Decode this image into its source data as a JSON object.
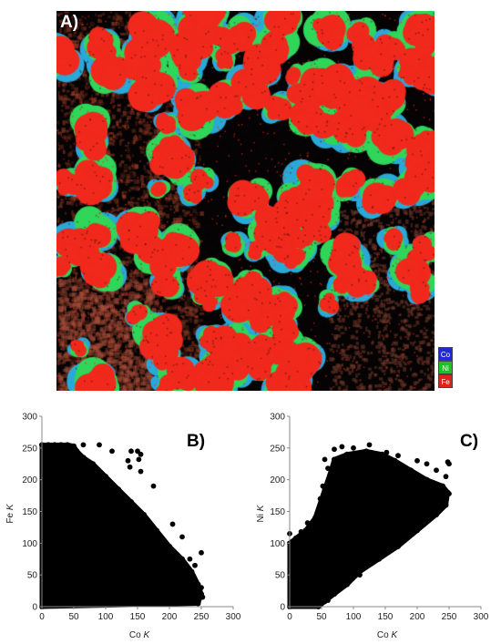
{
  "map": {
    "label": "A)",
    "legend": [
      {
        "label": "Co",
        "color": "#1f2ad6"
      },
      {
        "label": "Ni",
        "color": "#1ec21e"
      },
      {
        "label": "Fe",
        "color": "#d9261c"
      }
    ],
    "colors": {
      "background": "#050303",
      "fe": "#f0291c",
      "ni": "#2fd65a",
      "co": "#2aa8d8",
      "matrix": "#6e2a1e"
    }
  },
  "chart_data": [
    {
      "type": "scatter",
      "panel_label": "B)",
      "xlabel": "Co",
      "xlabel_italic": "K",
      "ylabel": "Fe",
      "ylabel_italic": "K",
      "xlim": [
        0,
        300
      ],
      "ylim": [
        0,
        300
      ],
      "xticks": [
        "0",
        "50",
        "100",
        "150",
        "200",
        "250",
        "300"
      ],
      "yticks": [
        "0",
        "50",
        "100",
        "150",
        "200",
        "250",
        "300"
      ],
      "marker_color": "#000000",
      "series": [
        {
          "values": [
            [
              0,
              255
            ],
            [
              10,
              255
            ],
            [
              20,
              255
            ],
            [
              30,
              255
            ],
            [
              40,
              255
            ],
            [
              50,
              253
            ],
            [
              55,
              245
            ],
            [
              65,
              235
            ],
            [
              80,
              225
            ],
            [
              100,
              205
            ],
            [
              120,
              185
            ],
            [
              140,
              165
            ],
            [
              160,
              145
            ],
            [
              180,
              120
            ],
            [
              200,
              95
            ],
            [
              220,
              75
            ],
            [
              235,
              55
            ],
            [
              245,
              35
            ],
            [
              250,
              20
            ],
            [
              245,
              5
            ],
            [
              0,
              0
            ]
          ]
        },
        {
          "values": [
            [
              65,
              255
            ],
            [
              90,
              255
            ],
            [
              110,
              245
            ],
            [
              135,
              230
            ],
            [
              140,
              245
            ],
            [
              150,
              245
            ],
            [
              155,
              240
            ],
            [
              152,
              232
            ],
            [
              138,
              220
            ],
            [
              155,
              213
            ],
            [
              175,
              190
            ],
            [
              205,
              130
            ],
            [
              220,
              110
            ],
            [
              232,
              75
            ],
            [
              250,
              85
            ],
            [
              240,
              65
            ],
            [
              250,
              30
            ],
            [
              252,
              15
            ]
          ]
        }
      ]
    },
    {
      "type": "scatter",
      "panel_label": "C)",
      "xlabel": "Co",
      "xlabel_italic": "K",
      "ylabel": "Ni",
      "ylabel_italic": "K",
      "xlim": [
        0,
        300
      ],
      "ylim": [
        0,
        300
      ],
      "xticks": [
        "0",
        "50",
        "100",
        "150",
        "200",
        "250",
        "300"
      ],
      "yticks": [
        "0",
        "50",
        "100",
        "150",
        "200",
        "250",
        "300"
      ],
      "marker_color": "#000000",
      "series": [
        {
          "values": [
            [
              0,
              0
            ],
            [
              0,
              100
            ],
            [
              10,
              108
            ],
            [
              25,
              120
            ],
            [
              40,
              140
            ],
            [
              55,
              185
            ],
            [
              65,
              215
            ],
            [
              70,
              232
            ],
            [
              90,
              240
            ],
            [
              120,
              245
            ],
            [
              145,
              240
            ],
            [
              165,
              230
            ],
            [
              190,
              215
            ],
            [
              215,
              200
            ],
            [
              240,
              190
            ],
            [
              248,
              180
            ],
            [
              245,
              160
            ],
            [
              230,
              145
            ],
            [
              200,
              120
            ],
            [
              170,
              95
            ],
            [
              140,
              75
            ],
            [
              110,
              55
            ],
            [
              90,
              35
            ],
            [
              70,
              20
            ],
            [
              55,
              8
            ],
            [
              45,
              0
            ]
          ]
        },
        {
          "values": [
            [
              0,
              115
            ],
            [
              18,
              118
            ],
            [
              28,
              132
            ],
            [
              45,
              150
            ],
            [
              48,
              170
            ],
            [
              52,
              190
            ],
            [
              60,
              218
            ],
            [
              55,
              232
            ],
            [
              70,
              248
            ],
            [
              82,
              252
            ],
            [
              100,
              250
            ],
            [
              125,
              255
            ],
            [
              152,
              243
            ],
            [
              170,
              238
            ],
            [
              200,
              230
            ],
            [
              215,
              225
            ],
            [
              230,
              215
            ],
            [
              245,
              205
            ],
            [
              250,
              178
            ],
            [
              250,
              225
            ],
            [
              248,
              228
            ],
            [
              240,
              170
            ],
            [
              220,
              150
            ],
            [
              180,
              108
            ],
            [
              160,
              95
            ],
            [
              125,
              70
            ],
            [
              110,
              50
            ],
            [
              75,
              25
            ],
            [
              60,
              10
            ],
            [
              10,
              8
            ],
            [
              5,
              3
            ]
          ]
        }
      ]
    }
  ]
}
